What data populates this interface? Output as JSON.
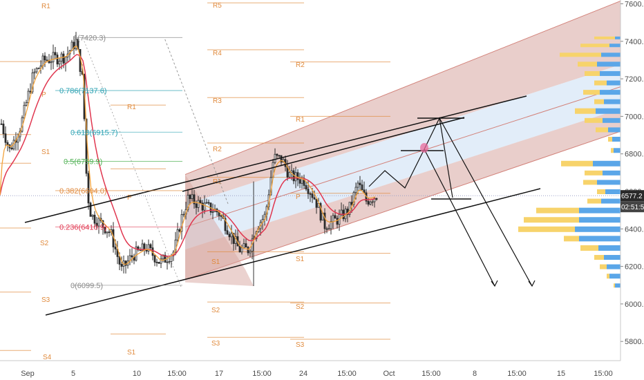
{
  "chart_data": {
    "type": "candlestick",
    "y_axis": {
      "ticks": [
        5800,
        6000,
        6200,
        6400,
        6600,
        6800,
        7000,
        7200,
        7400,
        7600
      ],
      "labels": [
        "5800.0",
        "6000.0",
        "6200.0",
        "6400.0",
        "6600.0",
        "6800.0",
        "7000.0",
        "7200.0",
        "7400.0",
        "7600.0"
      ],
      "range": [
        5750,
        7650
      ]
    },
    "x_axis": {
      "labels": [
        "Sep",
        "5",
        "10",
        "15:00",
        "17",
        "15:00",
        "24",
        "15:00",
        "Oct",
        "15:00",
        "8",
        "15:00",
        "15",
        "15:00"
      ]
    },
    "price_tags": {
      "last_price": "6577.2",
      "countdown": "02:51:59",
      "last_color": "#2a2a2a",
      "horizontal_line_color": "#e0364f"
    },
    "fib_levels": [
      {
        "label": "1(7420.3)",
        "color": "#888888",
        "value": 7420.3
      },
      {
        "label": "0.786(7137.6)",
        "color": "#2aa1b2",
        "value": 7137.6
      },
      {
        "label": "0.618(6915.7)",
        "color": "#2aa1b2",
        "value": 6915.7
      },
      {
        "label": "0.5(6759.9)",
        "color": "#4caf50",
        "value": 6759.9
      },
      {
        "label": "0.382(6604.0)",
        "color": "#e0893c",
        "value": 6604.0
      },
      {
        "label": "0.236(6410.9)",
        "color": "#e0364f",
        "value": 6410.9
      },
      {
        "label": "0(6099.5)",
        "color": "#888888",
        "value": 6099.5
      }
    ],
    "pivot_labels": [
      "R1",
      "P",
      "S1",
      "S2",
      "S3",
      "S4",
      "R5",
      "R4",
      "R3",
      "R2",
      "R1",
      "P",
      "S1",
      "S2",
      "S3",
      "R2",
      "R1",
      "S1",
      "S2",
      "R1",
      "P",
      "S1"
    ],
    "colors": {
      "candle": "#2a2a2a",
      "ema_fast": "#f2a23a",
      "ema_slow": "#e0364f",
      "channel_outer": "#d7a5a0",
      "channel_inner": "#dbe8f7",
      "volume_buy": "#f7d36b",
      "volume_sell": "#5aa6e8",
      "pivot": "#e08a3c",
      "trendline": "#111111"
    }
  }
}
